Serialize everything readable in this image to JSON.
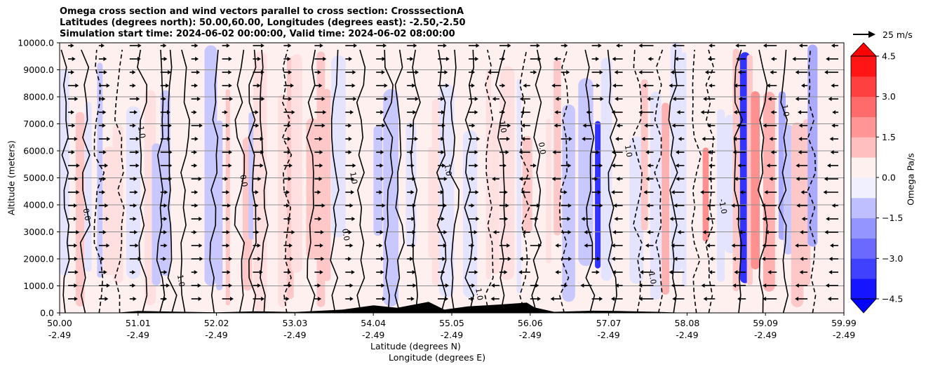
{
  "titles": {
    "line1": "Omega cross section and wind vectors parallel to cross section: CrosssectionA",
    "line2": "Latitudes (degrees north): 50.00,60.00, Longitudes (degrees east): -2.50,-2.50",
    "line3": "Simulation start time: 2024-06-02 00:00:00, Valid time: 2024-06-02 08:00:00"
  },
  "quiver_key": {
    "label": "25 m/s"
  },
  "chart_data": {
    "type": "heatmap",
    "title": "Omega cross section and wind vectors parallel to cross section: CrosssectionA",
    "ylabel": "Altitude (meters)",
    "xlabel_line1": "Latitude (degrees N)",
    "xlabel_line2": "Longitude (degrees E)",
    "ylim": [
      0,
      10000
    ],
    "y_ticks": [
      {
        "value": 0,
        "label": "0.0"
      },
      {
        "value": 1000,
        "label": "1000.0"
      },
      {
        "value": 2000,
        "label": "2000.0"
      },
      {
        "value": 3000,
        "label": "3000.0"
      },
      {
        "value": 4000,
        "label": "4000.0"
      },
      {
        "value": 5000,
        "label": "5000.0"
      },
      {
        "value": 6000,
        "label": "6000.0"
      },
      {
        "value": 7000,
        "label": "7000.0"
      },
      {
        "value": 8000,
        "label": "8000.0"
      },
      {
        "value": 9000,
        "label": "9000.0"
      },
      {
        "value": 10000,
        "label": "10000.0"
      }
    ],
    "xlim": [
      50.0,
      59.99
    ],
    "x_ticks": [
      {
        "lat": "50.00",
        "lon": "-2.49"
      },
      {
        "lat": "51.01",
        "lon": "-2.49"
      },
      {
        "lat": "52.02",
        "lon": "-2.49"
      },
      {
        "lat": "53.03",
        "lon": "-2.49"
      },
      {
        "lat": "54.04",
        "lon": "-2.49"
      },
      {
        "lat": "55.05",
        "lon": "-2.49"
      },
      {
        "lat": "56.06",
        "lon": "-2.49"
      },
      {
        "lat": "57.07",
        "lon": "-2.49"
      },
      {
        "lat": "58.08",
        "lon": "-2.49"
      },
      {
        "lat": "59.09",
        "lon": "-2.49"
      },
      {
        "lat": "59.99",
        "lon": "-2.49"
      }
    ],
    "colorbar": {
      "label": "Omega Pa/s",
      "range": [
        -5.25,
        5.25
      ],
      "ticks": [
        "4.5",
        "3.0",
        "1.5",
        "0.0",
        "−1.5",
        "−3.0",
        "−4.5"
      ],
      "tick_values": [
        4.5,
        3.0,
        1.5,
        0.0,
        -1.5,
        -3.0,
        -4.5
      ],
      "levels": [
        -5.25,
        -4.5,
        -3.75,
        -3.0,
        -2.25,
        -1.5,
        -0.75,
        0,
        0.75,
        1.5,
        2.25,
        3.0,
        3.75,
        4.5,
        5.25
      ]
    },
    "contour_labels": [
      {
        "lat": 50.3,
        "alt": 3850,
        "text": "0.0"
      },
      {
        "lat": 51.0,
        "alt": 6900,
        "text": "1.0"
      },
      {
        "lat": 52.3,
        "alt": 5100,
        "text": "0.0"
      },
      {
        "lat": 53.7,
        "alt": 5200,
        "text": "1.0"
      },
      {
        "lat": 54.9,
        "alt": 5500,
        "text": "1.0"
      },
      {
        "lat": 55.6,
        "alt": 7100,
        "text": "1.0"
      },
      {
        "lat": 56.1,
        "alt": 6300,
        "text": "0.0"
      },
      {
        "lat": 57.2,
        "alt": 6200,
        "text": "1.0"
      },
      {
        "lat": 58.4,
        "alt": 4200,
        "text": "-1.0"
      },
      {
        "lat": 59.2,
        "alt": 7700,
        "text": "1.0"
      },
      {
        "lat": 55.3,
        "alt": 900,
        "text": "1.0"
      },
      {
        "lat": 57.5,
        "alt": 1600,
        "text": "-1.0"
      },
      {
        "lat": 53.6,
        "alt": 3100,
        "text": "0.0"
      },
      {
        "lat": 51.5,
        "alt": 1400,
        "text": "1.0"
      }
    ]
  }
}
